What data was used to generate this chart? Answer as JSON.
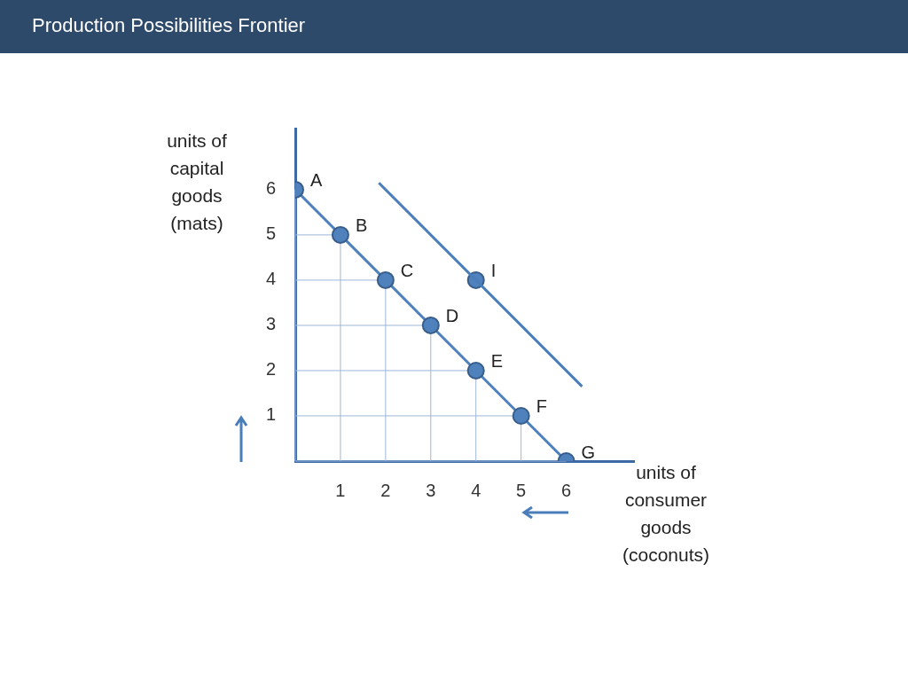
{
  "chart_data": {
    "type": "line",
    "title": "Production Possibilities Frontier",
    "xlabel": "units of consumer goods (coconuts)",
    "ylabel": "units of capital goods (mats)",
    "xlim": [
      0,
      7.5
    ],
    "ylim": [
      0,
      7.35
    ],
    "xticks": [
      1,
      2,
      3,
      4,
      5,
      6
    ],
    "yticks": [
      1,
      2,
      3,
      4,
      5,
      6
    ],
    "grid": false,
    "legend": false,
    "marker": "circle",
    "series": [
      {
        "color": "#4f81bd",
        "x": [
          0,
          1,
          2,
          3,
          4,
          5,
          6
        ],
        "values": [
          6,
          5,
          4,
          3,
          2,
          1,
          0
        ]
      },
      {
        "type": "line",
        "color": "#4a7ebb",
        "marker": "none",
        "x": [
          1.85,
          6.35
        ],
        "values": [
          6.15,
          1.65
        ]
      },
      {
        "type": "scatter",
        "color": "#4f81bd",
        "x": [
          4
        ],
        "values": [
          4
        ]
      }
    ],
    "annotations": [
      {
        "text": "A",
        "x": 0,
        "y": 6
      },
      {
        "text": "B",
        "x": 1,
        "y": 5
      },
      {
        "text": "C",
        "x": 2,
        "y": 4
      },
      {
        "text": "D",
        "x": 3,
        "y": 3
      },
      {
        "text": "E",
        "x": 4,
        "y": 2
      },
      {
        "text": "F",
        "x": 5,
        "y": 1
      },
      {
        "text": "G",
        "x": 6,
        "y": 0
      },
      {
        "text": "I",
        "x": 4,
        "y": 4
      }
    ]
  }
}
